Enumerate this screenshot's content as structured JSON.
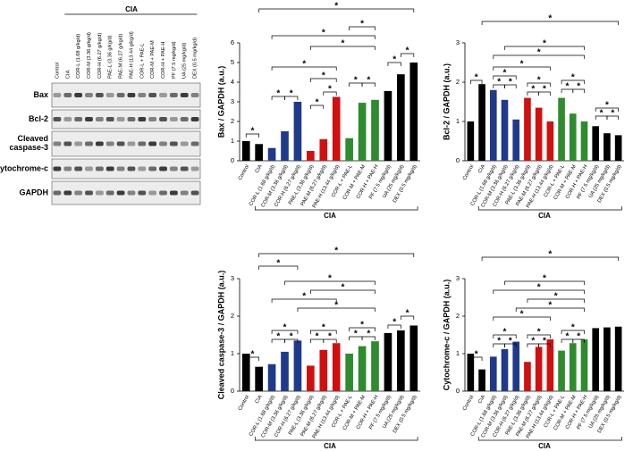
{
  "blot": {
    "header": "CIA",
    "lanes": [
      "Control",
      "CIA",
      "COR-L (1.68 g/kg/d)",
      "COR-M (3.36 g/kg/d)",
      "COR-H (6.27 g/kg/d)",
      "PAE-L (3.36 g/kg/d)",
      "PAE-M (6.27 g/kg/d)",
      "PAE-H (13.44 g/kg/d)",
      "COR-L + PAE-L",
      "COR-M + PAE-M",
      "COR-H + PAE-H",
      "PF (7.5 mg/kg/d)",
      "UA (25 mg/kg/d)",
      "DEX (0.5 mg/kg/d)"
    ],
    "rows": [
      "Bax",
      "Bcl-2",
      "Cleaved\ncaspase-3",
      "Cytochrome-c",
      "GAPDH"
    ]
  },
  "chart_data": [
    {
      "type": "bar",
      "ylabel": "Bax / GAPDH (a.u.)",
      "group_label": "CIA",
      "categories": [
        "Control",
        "CIA",
        "COR-L (1.68 g/kg/d)",
        "COR-M (3.36 g/kg/d)",
        "COR-H (6.27 g/kg/d)",
        "PAE-L (3.36 g/kg/d)",
        "PAE-M (6.27 g/kg/d)",
        "PAE-H (13.44 g/kg/d)",
        "COR-L + PAE-L",
        "COR-M + PAE-M",
        "COR-H + PAE-H",
        "PF (7.5 mg/kg/d)",
        "UA (25 mg/kg/d)",
        "DEX (0.5 mg/kg/d)"
      ],
      "values": [
        1.0,
        0.85,
        0.65,
        1.5,
        3.0,
        0.5,
        1.1,
        3.25,
        1.15,
        2.95,
        3.1,
        3.55,
        4.4,
        5.0
      ],
      "colors": [
        "#000000",
        "#000000",
        "#1f3a8a",
        "#1f3a8a",
        "#1f3a8a",
        "#d01010",
        "#d01010",
        "#d01010",
        "#2e8b2e",
        "#2e8b2e",
        "#2e8b2e",
        "#000000",
        "#000000",
        "#000000"
      ],
      "ylim": [
        0,
        6
      ],
      "yticks": [
        0,
        1,
        2,
        3,
        4,
        5,
        6
      ],
      "annotations": [
        "*",
        "*",
        "*",
        "*",
        "*",
        "*",
        "*",
        "*",
        "*",
        "*",
        "*",
        "*",
        "*",
        "*",
        "*"
      ]
    },
    {
      "type": "bar",
      "ylabel": "Bcl-2 / GAPDH (a.u.)",
      "group_label": "CIA",
      "categories": [
        "Control",
        "CIA",
        "COR-L (1.68 g/kg/d)",
        "COR-M (3.36 g/kg/d)",
        "COR-H (6.27 g/kg/d)",
        "PAE-L (3.36 g/kg/d)",
        "PAE-M (6.27 g/kg/d)",
        "PAE-H (13.44 g/kg/d)",
        "COR-L + PAE-L",
        "COR-M + PAE-M",
        "COR-H + PAE-H",
        "PF (7.5 mg/kg/d)",
        "UA (25 mg/kg/d)",
        "DEX (0.5 mg/kg/d)"
      ],
      "values": [
        1.0,
        1.95,
        1.8,
        1.55,
        1.05,
        1.6,
        1.35,
        1.0,
        1.6,
        1.2,
        1.0,
        0.88,
        0.7,
        0.65
      ],
      "colors": [
        "#000000",
        "#000000",
        "#1f3a8a",
        "#1f3a8a",
        "#1f3a8a",
        "#d01010",
        "#d01010",
        "#d01010",
        "#2e8b2e",
        "#2e8b2e",
        "#2e8b2e",
        "#000000",
        "#000000",
        "#000000"
      ],
      "ylim": [
        0,
        3
      ],
      "yticks": [
        0,
        1,
        2,
        3
      ],
      "annotations": [
        "*",
        "*",
        "*",
        "*",
        "*",
        "*",
        "*",
        "*",
        "*",
        "*",
        "*",
        "*",
        "*",
        "*",
        "*",
        "*",
        "*"
      ]
    },
    {
      "type": "bar",
      "ylabel": "Cleaved caspase-3 / GAPDH (a.u.)",
      "group_label": "CIA",
      "categories": [
        "Control",
        "CIA",
        "COR-L (1.68 g/kg/d)",
        "COR-M (3.36 g/kg/d)",
        "COR-H (6.27 g/kg/d)",
        "PAE-L (3.36 g/kg/d)",
        "PAE-M (6.27 g/kg/d)",
        "PAE-H (13.44 g/kg/d)",
        "COR-L + PAE-L",
        "COR-M + PAE-M",
        "COR-H + PAE-H",
        "PF (7.5 mg/kg/d)",
        "UA (25 mg/kg/d)",
        "DEX (0.5 mg/kg/d)"
      ],
      "values": [
        1.0,
        0.65,
        0.72,
        1.05,
        1.35,
        0.68,
        1.1,
        1.28,
        1.0,
        1.2,
        1.33,
        1.55,
        1.62,
        1.75
      ],
      "colors": [
        "#000000",
        "#000000",
        "#1f3a8a",
        "#1f3a8a",
        "#1f3a8a",
        "#d01010",
        "#d01010",
        "#d01010",
        "#2e8b2e",
        "#2e8b2e",
        "#2e8b2e",
        "#000000",
        "#000000",
        "#000000"
      ],
      "ylim": [
        0,
        3
      ],
      "yticks": [
        0,
        1,
        2,
        3
      ],
      "annotations": [
        "*",
        "*",
        "*",
        "*",
        "*",
        "*",
        "*",
        "*",
        "*",
        "*",
        "*",
        "*",
        "*",
        "*",
        "*",
        "*",
        "*",
        "*"
      ]
    },
    {
      "type": "bar",
      "ylabel": "Cytochrome-c / GAPDH (a.u.)",
      "group_label": "CIA",
      "categories": [
        "Control",
        "CIA",
        "COR-L (1.68 g/kg/d)",
        "COR-M (3.36 g/kg/d)",
        "COR-H (6.27 g/kg/d)",
        "PAE-L (3.36 g/kg/d)",
        "PAE-M (6.27 g/kg/d)",
        "PAE-H (13.44 g/kg/d)",
        "COR-L + PAE-L",
        "COR-M + PAE-M",
        "COR-H + PAE-H",
        "PF (7.5 mg/kg/d)",
        "UA (25 mg/kg/d)",
        "DEX (0.5 mg/kg/d)"
      ],
      "values": [
        1.0,
        0.58,
        0.92,
        1.12,
        1.32,
        0.78,
        1.18,
        1.38,
        1.08,
        1.28,
        1.38,
        1.68,
        1.7,
        1.72
      ],
      "colors": [
        "#000000",
        "#000000",
        "#1f3a8a",
        "#1f3a8a",
        "#1f3a8a",
        "#d01010",
        "#d01010",
        "#d01010",
        "#2e8b2e",
        "#2e8b2e",
        "#2e8b2e",
        "#000000",
        "#000000",
        "#000000"
      ],
      "ylim": [
        0,
        3
      ],
      "yticks": [
        0,
        1,
        2,
        3
      ],
      "annotations": [
        "*",
        "*",
        "*",
        "*",
        "*",
        "*",
        "*",
        "*",
        "*",
        "*",
        "*",
        "*",
        "*",
        "*",
        "*",
        "*"
      ]
    }
  ]
}
